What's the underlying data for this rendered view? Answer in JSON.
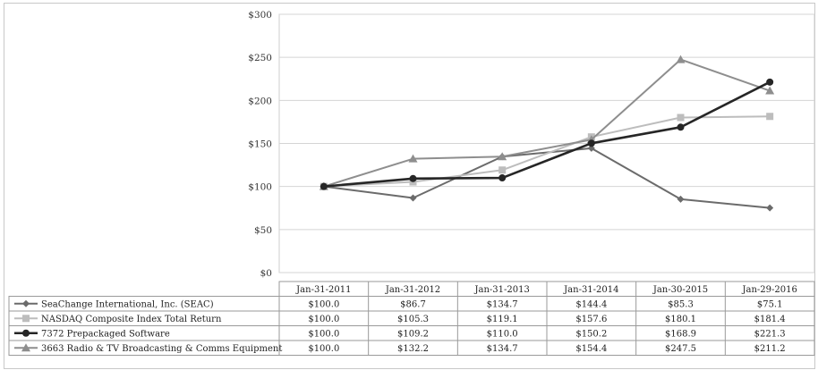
{
  "chart_data": {
    "type": "line",
    "categories": [
      "Jan-31-2011",
      "Jan-31-2012",
      "Jan-31-2013",
      "Jan-31-2014",
      "Jan-30-2015",
      "Jan-29-2016"
    ],
    "ylim": [
      0,
      300
    ],
    "yticks": [
      "$0",
      "$50",
      "$100",
      "$150",
      "$200",
      "$250",
      "$300"
    ],
    "grid": true,
    "legend": "table-below",
    "series": [
      {
        "name": "SeaChange International, Inc. (SEAC)",
        "values": [
          100.0,
          86.7,
          134.7,
          144.4,
          85.3,
          75.1
        ],
        "labels": [
          "$100.0",
          "$86.7",
          "$134.7",
          "$144.4",
          "$85.3",
          "$75.1"
        ],
        "color": "#6b6b6b",
        "marker": "diamond"
      },
      {
        "name": "NASDAQ Composite Index Total Return",
        "values": [
          100.0,
          105.3,
          119.1,
          157.6,
          180.1,
          181.4
        ],
        "labels": [
          "$100.0",
          "$105.3",
          "$119.1",
          "$157.6",
          "$180.1",
          "$181.4"
        ],
        "color": "#bdbdbd",
        "marker": "square"
      },
      {
        "name": "7372 Prepackaged Software",
        "values": [
          100.0,
          109.2,
          110.0,
          150.2,
          168.9,
          221.3
        ],
        "labels": [
          "$100.0",
          "$109.2",
          "$110.0",
          "$150.2",
          "$168.9",
          "$221.3"
        ],
        "color": "#262626",
        "marker": "circle"
      },
      {
        "name": "3663 Radio & TV Broadcasting & Comms Equipment",
        "values": [
          100.0,
          132.2,
          134.7,
          154.4,
          247.5,
          211.2
        ],
        "labels": [
          "$100.0",
          "$132.2",
          "$134.7",
          "$154.4",
          "$247.5",
          "$211.2"
        ],
        "color": "#8e8e8e",
        "marker": "triangle"
      }
    ]
  }
}
